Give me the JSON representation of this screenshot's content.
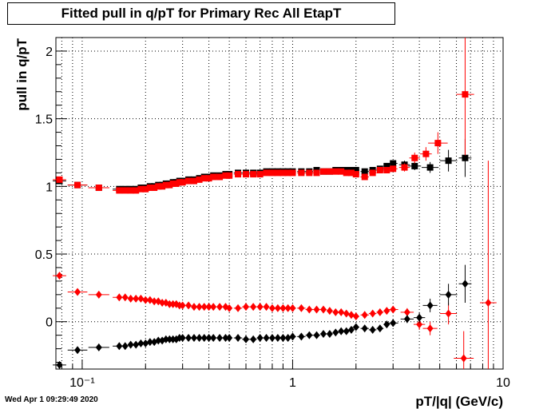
{
  "chart_data": {
    "type": "scatter",
    "title": "Fitted pull in q/pT for Primary Rec All EtapT",
    "xlabel": "pT/|q| (GeV/c)",
    "ylabel": "pull in q/pT",
    "x_scale": "log",
    "xlim": [
      0.075,
      10
    ],
    "ylim": [
      -0.35,
      2.1
    ],
    "x_tick_labels": [
      "10⁻¹",
      "1",
      "10"
    ],
    "y_tick_labels": [
      "0",
      "0.5",
      "1",
      "1.5",
      "2"
    ],
    "y_ticks": [
      0,
      0.5,
      1,
      1.5,
      2
    ],
    "grid": true,
    "timestamp": "Wed Apr  1 09:29:49 2020",
    "series": [
      {
        "marker": "square",
        "color": "#000000",
        "x": [
          0.078,
          0.095,
          0.12,
          0.15,
          0.16,
          0.17,
          0.18,
          0.19,
          0.2,
          0.21,
          0.22,
          0.23,
          0.24,
          0.25,
          0.26,
          0.27,
          0.28,
          0.29,
          0.3,
          0.32,
          0.34,
          0.36,
          0.38,
          0.4,
          0.42,
          0.45,
          0.48,
          0.5,
          0.55,
          0.6,
          0.65,
          0.7,
          0.75,
          0.8,
          0.85,
          0.9,
          0.95,
          1.0,
          1.1,
          1.2,
          1.3,
          1.4,
          1.5,
          1.6,
          1.7,
          1.8,
          1.9,
          2.0,
          2.2,
          2.4,
          2.6,
          2.8,
          3.0,
          3.4,
          3.8,
          4.5,
          5.5,
          6.6
        ],
        "y": [
          1.04,
          1.01,
          0.99,
          0.98,
          0.98,
          0.98,
          0.98,
          0.99,
          0.99,
          1.0,
          1.0,
          1.01,
          1.01,
          1.02,
          1.02,
          1.03,
          1.03,
          1.04,
          1.04,
          1.05,
          1.05,
          1.06,
          1.07,
          1.07,
          1.08,
          1.08,
          1.09,
          1.09,
          1.1,
          1.1,
          1.1,
          1.1,
          1.11,
          1.11,
          1.11,
          1.11,
          1.11,
          1.11,
          1.11,
          1.11,
          1.12,
          1.11,
          1.11,
          1.12,
          1.12,
          1.12,
          1.12,
          1.12,
          1.11,
          1.12,
          1.13,
          1.15,
          1.17,
          1.16,
          1.15,
          1.14,
          1.19,
          1.21
        ],
        "yerr": [
          0.02,
          0.01,
          0.01,
          0.01,
          0.01,
          0.01,
          0.01,
          0.01,
          0.01,
          0.01,
          0.01,
          0.01,
          0.01,
          0.01,
          0.01,
          0.01,
          0.01,
          0.01,
          0.01,
          0.01,
          0.01,
          0.01,
          0.01,
          0.01,
          0.01,
          0.01,
          0.01,
          0.01,
          0.01,
          0.01,
          0.01,
          0.01,
          0.01,
          0.01,
          0.01,
          0.01,
          0.01,
          0.01,
          0.01,
          0.01,
          0.01,
          0.01,
          0.01,
          0.01,
          0.01,
          0.01,
          0.01,
          0.01,
          0.01,
          0.02,
          0.02,
          0.02,
          0.02,
          0.03,
          0.03,
          0.04,
          0.08,
          0.14
        ]
      },
      {
        "marker": "square",
        "color": "#ff0000",
        "x": [
          0.078,
          0.095,
          0.12,
          0.15,
          0.16,
          0.17,
          0.18,
          0.19,
          0.2,
          0.21,
          0.22,
          0.23,
          0.24,
          0.25,
          0.26,
          0.27,
          0.28,
          0.29,
          0.3,
          0.32,
          0.34,
          0.36,
          0.38,
          0.4,
          0.42,
          0.45,
          0.48,
          0.5,
          0.55,
          0.6,
          0.65,
          0.7,
          0.75,
          0.8,
          0.85,
          0.9,
          0.95,
          1.0,
          1.1,
          1.2,
          1.3,
          1.4,
          1.5,
          1.6,
          1.7,
          1.8,
          1.9,
          2.0,
          2.2,
          2.4,
          2.6,
          2.8,
          3.0,
          3.4,
          3.8,
          4.3,
          4.9,
          6.6
        ],
        "y": [
          1.05,
          1.01,
          0.99,
          0.97,
          0.97,
          0.97,
          0.97,
          0.98,
          0.98,
          0.99,
          0.99,
          1.0,
          1.0,
          1.01,
          1.01,
          1.02,
          1.02,
          1.03,
          1.03,
          1.04,
          1.04,
          1.05,
          1.06,
          1.06,
          1.07,
          1.07,
          1.08,
          1.08,
          1.09,
          1.09,
          1.09,
          1.09,
          1.1,
          1.1,
          1.1,
          1.1,
          1.1,
          1.1,
          1.1,
          1.1,
          1.1,
          1.11,
          1.11,
          1.11,
          1.11,
          1.1,
          1.1,
          1.09,
          1.07,
          1.1,
          1.12,
          1.12,
          1.13,
          1.14,
          1.21,
          1.24,
          1.32,
          1.68
        ],
        "yerr": [
          0.02,
          0.01,
          0.01,
          0.01,
          0.01,
          0.01,
          0.01,
          0.01,
          0.01,
          0.01,
          0.01,
          0.01,
          0.01,
          0.01,
          0.01,
          0.01,
          0.01,
          0.01,
          0.01,
          0.01,
          0.01,
          0.01,
          0.01,
          0.01,
          0.01,
          0.01,
          0.01,
          0.01,
          0.01,
          0.01,
          0.01,
          0.01,
          0.01,
          0.01,
          0.01,
          0.01,
          0.01,
          0.01,
          0.01,
          0.01,
          0.01,
          0.01,
          0.01,
          0.01,
          0.01,
          0.01,
          0.01,
          0.01,
          0.01,
          0.02,
          0.02,
          0.02,
          0.02,
          0.03,
          0.04,
          0.05,
          0.08,
          0.45
        ]
      },
      {
        "marker": "diamond",
        "color": "#ff0000",
        "x": [
          0.078,
          0.095,
          0.12,
          0.15,
          0.16,
          0.17,
          0.18,
          0.19,
          0.2,
          0.21,
          0.22,
          0.23,
          0.24,
          0.25,
          0.26,
          0.27,
          0.28,
          0.29,
          0.3,
          0.32,
          0.34,
          0.36,
          0.38,
          0.4,
          0.42,
          0.45,
          0.48,
          0.5,
          0.55,
          0.6,
          0.65,
          0.7,
          0.75,
          0.8,
          0.85,
          0.9,
          0.95,
          1.0,
          1.1,
          1.2,
          1.3,
          1.4,
          1.5,
          1.6,
          1.7,
          1.8,
          1.9,
          2.0,
          2.2,
          2.4,
          2.6,
          2.8,
          3.0,
          3.5,
          4.0,
          4.5,
          5.5,
          6.5,
          8.5
        ],
        "y": [
          0.34,
          0.22,
          0.2,
          0.18,
          0.18,
          0.17,
          0.17,
          0.17,
          0.16,
          0.16,
          0.15,
          0.15,
          0.14,
          0.14,
          0.13,
          0.13,
          0.13,
          0.12,
          0.12,
          0.12,
          0.11,
          0.11,
          0.11,
          0.11,
          0.11,
          0.11,
          0.11,
          0.1,
          0.1,
          0.11,
          0.11,
          0.11,
          0.11,
          0.1,
          0.1,
          0.1,
          0.1,
          0.1,
          0.1,
          0.09,
          0.09,
          0.09,
          0.08,
          0.07,
          0.07,
          0.06,
          0.05,
          0.04,
          0.05,
          0.06,
          0.07,
          0.08,
          0.09,
          0.07,
          -0.02,
          -0.05,
          0.06,
          -0.27,
          0.14
        ],
        "yerr": [
          0.02,
          0.01,
          0.01,
          0.01,
          0.01,
          0.01,
          0.01,
          0.01,
          0.01,
          0.01,
          0.01,
          0.01,
          0.01,
          0.01,
          0.01,
          0.01,
          0.01,
          0.01,
          0.01,
          0.01,
          0.01,
          0.01,
          0.01,
          0.01,
          0.01,
          0.01,
          0.01,
          0.01,
          0.01,
          0.01,
          0.01,
          0.01,
          0.01,
          0.01,
          0.01,
          0.01,
          0.01,
          0.01,
          0.01,
          0.01,
          0.01,
          0.01,
          0.01,
          0.01,
          0.01,
          0.01,
          0.01,
          0.01,
          0.01,
          0.01,
          0.01,
          0.02,
          0.02,
          0.03,
          0.04,
          0.05,
          0.08,
          0.2,
          1.05
        ]
      },
      {
        "marker": "diamond",
        "color": "#000000",
        "x": [
          0.078,
          0.095,
          0.12,
          0.15,
          0.16,
          0.17,
          0.18,
          0.19,
          0.2,
          0.21,
          0.22,
          0.23,
          0.24,
          0.25,
          0.26,
          0.27,
          0.28,
          0.29,
          0.3,
          0.32,
          0.34,
          0.36,
          0.38,
          0.4,
          0.42,
          0.45,
          0.48,
          0.5,
          0.55,
          0.6,
          0.65,
          0.7,
          0.75,
          0.8,
          0.85,
          0.9,
          0.95,
          1.0,
          1.1,
          1.2,
          1.3,
          1.4,
          1.5,
          1.6,
          1.7,
          1.8,
          1.9,
          2.0,
          2.2,
          2.4,
          2.6,
          2.8,
          3.0,
          3.5,
          4.0,
          4.5,
          5.5,
          6.6
        ],
        "y": [
          -0.32,
          -0.21,
          -0.19,
          -0.18,
          -0.18,
          -0.17,
          -0.17,
          -0.16,
          -0.16,
          -0.15,
          -0.15,
          -0.14,
          -0.14,
          -0.13,
          -0.13,
          -0.13,
          -0.13,
          -0.12,
          -0.12,
          -0.12,
          -0.12,
          -0.12,
          -0.12,
          -0.12,
          -0.12,
          -0.12,
          -0.12,
          -0.12,
          -0.12,
          -0.13,
          -0.13,
          -0.12,
          -0.12,
          -0.12,
          -0.12,
          -0.12,
          -0.12,
          -0.11,
          -0.11,
          -0.1,
          -0.1,
          -0.09,
          -0.09,
          -0.08,
          -0.07,
          -0.07,
          -0.06,
          -0.04,
          -0.05,
          -0.06,
          -0.05,
          -0.02,
          -0.01,
          0.02,
          0.03,
          0.12,
          0.2,
          0.28
        ],
        "yerr": [
          0.02,
          0.01,
          0.01,
          0.01,
          0.01,
          0.01,
          0.01,
          0.01,
          0.01,
          0.01,
          0.01,
          0.01,
          0.01,
          0.01,
          0.01,
          0.01,
          0.01,
          0.01,
          0.01,
          0.01,
          0.01,
          0.01,
          0.01,
          0.01,
          0.01,
          0.01,
          0.01,
          0.01,
          0.01,
          0.01,
          0.01,
          0.01,
          0.01,
          0.01,
          0.01,
          0.01,
          0.01,
          0.01,
          0.01,
          0.01,
          0.01,
          0.01,
          0.01,
          0.01,
          0.01,
          0.01,
          0.01,
          0.01,
          0.01,
          0.01,
          0.01,
          0.02,
          0.02,
          0.03,
          0.04,
          0.05,
          0.08,
          0.14
        ]
      }
    ]
  }
}
